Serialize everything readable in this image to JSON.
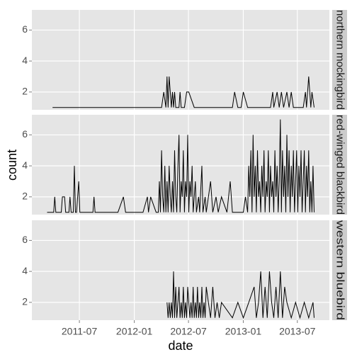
{
  "chart_data": {
    "type": "line",
    "xlabel": "date",
    "ylabel": "count",
    "xlim": [
      2011.06,
      2013.79
    ],
    "xticks": [
      {
        "value": 2011.496,
        "label": "2011-07"
      },
      {
        "value": 2012.0,
        "label": "2012-01"
      },
      {
        "value": 2012.497,
        "label": "2012-07"
      },
      {
        "value": 2013.0,
        "label": "2013-01"
      },
      {
        "value": 2013.496,
        "label": "2013-07"
      }
    ],
    "ylim": [
      0.85,
      7.3
    ],
    "yticks": [
      2,
      4,
      6
    ],
    "grid": true,
    "series": [
      {
        "name": "northern mockingbird",
        "color": "#000000",
        "x": [
          2011.25,
          2012.25,
          2012.27,
          2012.29,
          2012.3,
          2012.31,
          2012.32,
          2012.33,
          2012.34,
          2012.35,
          2012.36,
          2012.37,
          2012.38,
          2012.41,
          2012.42,
          2012.43,
          2012.46,
          2012.48,
          2012.5,
          2012.55,
          2012.9,
          2012.92,
          2012.95,
          2012.98,
          2013.0,
          2013.04,
          2013.25,
          2013.27,
          2013.28,
          2013.31,
          2013.33,
          2013.35,
          2013.37,
          2013.4,
          2013.42,
          2013.44,
          2013.46,
          2013.55,
          2013.57,
          2013.58,
          2013.6,
          2013.61,
          2013.62,
          2013.63,
          2013.65
        ],
        "values": [
          1,
          1,
          2,
          1,
          3,
          1,
          3,
          2,
          1,
          2,
          1,
          2,
          1,
          1,
          2,
          1,
          1,
          2,
          2,
          1,
          1,
          2,
          1,
          1,
          2,
          1,
          1,
          2,
          1,
          2,
          1,
          2,
          1,
          2,
          1,
          2,
          1,
          1,
          2,
          1,
          3,
          2,
          1,
          2,
          1
        ]
      },
      {
        "name": "red-winged blackbird",
        "color": "#000000",
        "x": [
          2011.2,
          2011.26,
          2011.27,
          2011.28,
          2011.33,
          2011.34,
          2011.36,
          2011.37,
          2011.4,
          2011.41,
          2011.42,
          2011.44,
          2011.45,
          2011.46,
          2011.47,
          2011.48,
          2011.49,
          2011.5,
          2011.62,
          2011.63,
          2011.64,
          2011.85,
          2011.9,
          2011.92,
          2012.08,
          2012.12,
          2012.13,
          2012.15,
          2012.2,
          2012.22,
          2012.23,
          2012.24,
          2012.25,
          2012.26,
          2012.27,
          2012.28,
          2012.29,
          2012.3,
          2012.31,
          2012.32,
          2012.33,
          2012.34,
          2012.35,
          2012.36,
          2012.37,
          2012.38,
          2012.39,
          2012.4,
          2012.41,
          2012.42,
          2012.43,
          2012.44,
          2012.45,
          2012.46,
          2012.47,
          2012.48,
          2012.49,
          2012.5,
          2012.51,
          2012.52,
          2012.53,
          2012.54,
          2012.56,
          2012.57,
          2012.59,
          2012.6,
          2012.62,
          2012.63,
          2012.65,
          2012.66,
          2012.7,
          2012.72,
          2012.75,
          2012.77,
          2012.8,
          2012.85,
          2012.88,
          2012.9,
          2013.0,
          2013.02,
          2013.04,
          2013.05,
          2013.06,
          2013.07,
          2013.08,
          2013.09,
          2013.1,
          2013.11,
          2013.12,
          2013.13,
          2013.14,
          2013.15,
          2013.16,
          2013.17,
          2013.18,
          2013.19,
          2013.2,
          2013.21,
          2013.22,
          2013.23,
          2013.24,
          2013.25,
          2013.26,
          2013.27,
          2013.28,
          2013.29,
          2013.3,
          2013.31,
          2013.32,
          2013.33,
          2013.34,
          2013.35,
          2013.36,
          2013.37,
          2013.38,
          2013.39,
          2013.4,
          2013.41,
          2013.42,
          2013.43,
          2013.44,
          2013.45,
          2013.46,
          2013.47,
          2013.48,
          2013.49,
          2013.5,
          2013.51,
          2013.52,
          2013.53,
          2013.54,
          2013.55,
          2013.56,
          2013.57,
          2013.58,
          2013.59,
          2013.6,
          2013.61,
          2013.62,
          2013.63,
          2013.64,
          2013.65
        ],
        "values": [
          1,
          1,
          2,
          1,
          1,
          2,
          2,
          1,
          1,
          2,
          1,
          1,
          4,
          1,
          1,
          2,
          3,
          1,
          1,
          2,
          1,
          1,
          2,
          1,
          1,
          2,
          1,
          2,
          1,
          1,
          3,
          1,
          5,
          2,
          1,
          4,
          1,
          3,
          1,
          4,
          2,
          1,
          3,
          1,
          5,
          2,
          1,
          4,
          6,
          1,
          3,
          2,
          5,
          1,
          3,
          2,
          6,
          1,
          3,
          2,
          4,
          1,
          3,
          1,
          2,
          1,
          4,
          1,
          2,
          1,
          3,
          1,
          2,
          1,
          2,
          1,
          3,
          1,
          1,
          2,
          1,
          4,
          2,
          5,
          1,
          6,
          2,
          4,
          1,
          5,
          2,
          3,
          1,
          4,
          2,
          5,
          1,
          3,
          2,
          5,
          1,
          4,
          2,
          3,
          1,
          5,
          2,
          4,
          1,
          3,
          7,
          1,
          5,
          2,
          4,
          1,
          6,
          2,
          5,
          1,
          4,
          2,
          5,
          1,
          3,
          5,
          1,
          4,
          2,
          5,
          1,
          3,
          5,
          1,
          4,
          2,
          5,
          1,
          3,
          1,
          4,
          1
        ]
      },
      {
        "name": "western bluebird",
        "color": "#000000",
        "x": [
          2012.3,
          2012.31,
          2012.32,
          2012.33,
          2012.34,
          2012.35,
          2012.36,
          2012.37,
          2012.38,
          2012.39,
          2012.4,
          2012.41,
          2012.42,
          2012.43,
          2012.44,
          2012.45,
          2012.46,
          2012.47,
          2012.48,
          2012.49,
          2012.5,
          2012.51,
          2012.52,
          2012.53,
          2012.54,
          2012.55,
          2012.56,
          2012.57,
          2012.58,
          2012.59,
          2012.6,
          2012.61,
          2012.62,
          2012.63,
          2012.64,
          2012.65,
          2012.66,
          2012.68,
          2012.7,
          2012.72,
          2012.74,
          2012.76,
          2012.78,
          2012.8,
          2012.9,
          2012.95,
          2013.0,
          2013.05,
          2013.1,
          2013.12,
          2013.14,
          2013.16,
          2013.18,
          2013.2,
          2013.22,
          2013.24,
          2013.26,
          2013.28,
          2013.3,
          2013.32,
          2013.34,
          2013.36,
          2013.38,
          2013.4,
          2013.44,
          2013.48,
          2013.52,
          2013.56,
          2013.6,
          2013.64,
          2013.65
        ],
        "values": [
          2,
          1,
          2,
          1,
          2,
          1,
          4,
          1,
          3,
          1,
          2,
          3,
          1,
          2,
          1,
          3,
          1,
          2,
          1,
          3,
          2,
          1,
          2,
          1,
          3,
          1,
          2,
          1,
          3,
          1,
          2,
          1,
          3,
          1,
          2,
          1,
          3,
          2,
          1,
          3,
          1,
          2,
          1,
          2,
          1,
          2,
          1,
          2,
          3,
          1,
          2,
          4,
          1,
          3,
          1,
          4,
          2,
          1,
          3,
          1,
          4,
          1,
          3,
          2,
          1,
          2,
          1,
          2,
          1,
          2,
          1
        ]
      }
    ]
  }
}
